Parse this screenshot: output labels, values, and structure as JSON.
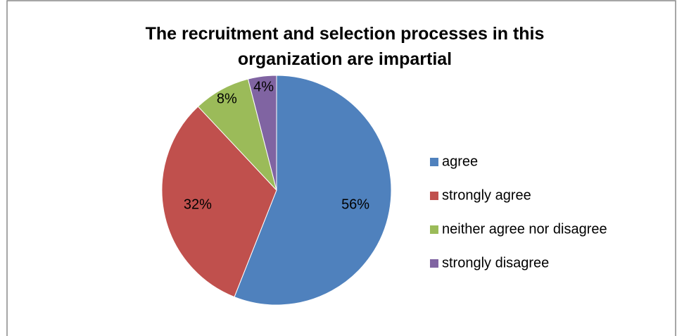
{
  "chart_data": {
    "type": "pie",
    "title": "The recruitment and selection processes in this organization are impartial",
    "categories": [
      "agree",
      "strongly agree",
      "neither agree nor disagree",
      "strongly disagree"
    ],
    "values": [
      56,
      32,
      8,
      4
    ],
    "value_labels": [
      "56%",
      "32%",
      "8%",
      "4%"
    ],
    "colors": [
      "#4f81bd",
      "#c0504d",
      "#9bbb59",
      "#8064a2"
    ],
    "legend": "right"
  }
}
